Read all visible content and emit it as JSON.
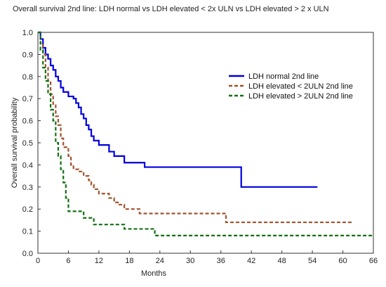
{
  "chart_data": {
    "type": "line",
    "title": "Overall survival 2nd line: LDH normal vs LDH elevated < 2x ULN vs LDH elevated > 2 x ULN",
    "xlabel": "Months",
    "ylabel": "Overall survival probability",
    "xlim": [
      0,
      66
    ],
    "ylim": [
      0,
      1.0
    ],
    "x_ticks": [
      0,
      6,
      12,
      18,
      24,
      30,
      36,
      42,
      48,
      54,
      60,
      66
    ],
    "y_ticks": [
      0.0,
      0.1,
      0.2,
      0.3,
      0.4,
      0.5,
      0.6,
      0.7,
      0.8,
      0.9,
      1.0
    ],
    "grid": false,
    "legend_position": "right",
    "series": [
      {
        "name": "LDH normal 2nd line",
        "color": "#0000dd",
        "dash": "solid",
        "points": [
          [
            0,
            1.0
          ],
          [
            0.5,
            0.97
          ],
          [
            1,
            0.93
          ],
          [
            1.5,
            0.9
          ],
          [
            2,
            0.88
          ],
          [
            2.5,
            0.85
          ],
          [
            3,
            0.83
          ],
          [
            3.5,
            0.8
          ],
          [
            4,
            0.78
          ],
          [
            4.5,
            0.75
          ],
          [
            5,
            0.73
          ],
          [
            6,
            0.71
          ],
          [
            7,
            0.7
          ],
          [
            7.5,
            0.68
          ],
          [
            8,
            0.66
          ],
          [
            8.5,
            0.63
          ],
          [
            9,
            0.61
          ],
          [
            9.5,
            0.58
          ],
          [
            10,
            0.56
          ],
          [
            10.5,
            0.53
          ],
          [
            11,
            0.51
          ],
          [
            12,
            0.49
          ],
          [
            14,
            0.46
          ],
          [
            15,
            0.44
          ],
          [
            17,
            0.41
          ],
          [
            21,
            0.39
          ],
          [
            39.5,
            0.39
          ],
          [
            40,
            0.3
          ],
          [
            55,
            0.3
          ]
        ]
      },
      {
        "name": "LDH elevated < 2ULN 2nd line",
        "color": "#a0522d",
        "dash": "dashed",
        "points": [
          [
            0,
            1.0
          ],
          [
            0.5,
            0.95
          ],
          [
            1,
            0.9
          ],
          [
            1.5,
            0.84
          ],
          [
            2,
            0.78
          ],
          [
            2.5,
            0.72
          ],
          [
            3,
            0.67
          ],
          [
            3.5,
            0.62
          ],
          [
            4,
            0.58
          ],
          [
            4.5,
            0.52
          ],
          [
            5,
            0.48
          ],
          [
            6,
            0.44
          ],
          [
            6.5,
            0.4
          ],
          [
            7,
            0.38
          ],
          [
            8,
            0.37
          ],
          [
            9,
            0.35
          ],
          [
            10,
            0.33
          ],
          [
            10.5,
            0.31
          ],
          [
            11,
            0.29
          ],
          [
            12,
            0.27
          ],
          [
            14,
            0.25
          ],
          [
            15,
            0.23
          ],
          [
            16,
            0.22
          ],
          [
            17,
            0.2
          ],
          [
            20,
            0.18
          ],
          [
            36,
            0.18
          ],
          [
            37,
            0.14
          ],
          [
            62,
            0.14
          ]
        ]
      },
      {
        "name": "LDH elevated > 2ULN 2nd line",
        "color": "#107010",
        "dash": "dashed",
        "points": [
          [
            0,
            1.0
          ],
          [
            0.5,
            0.92
          ],
          [
            1,
            0.84
          ],
          [
            1.5,
            0.78
          ],
          [
            2,
            0.72
          ],
          [
            2.5,
            0.65
          ],
          [
            3,
            0.6
          ],
          [
            3.5,
            0.5
          ],
          [
            4,
            0.44
          ],
          [
            4.5,
            0.38
          ],
          [
            5,
            0.32
          ],
          [
            5.5,
            0.25
          ],
          [
            6,
            0.19
          ],
          [
            9,
            0.16
          ],
          [
            11,
            0.13
          ],
          [
            17,
            0.11
          ],
          [
            23,
            0.08
          ],
          [
            66,
            0.08
          ]
        ]
      }
    ]
  }
}
